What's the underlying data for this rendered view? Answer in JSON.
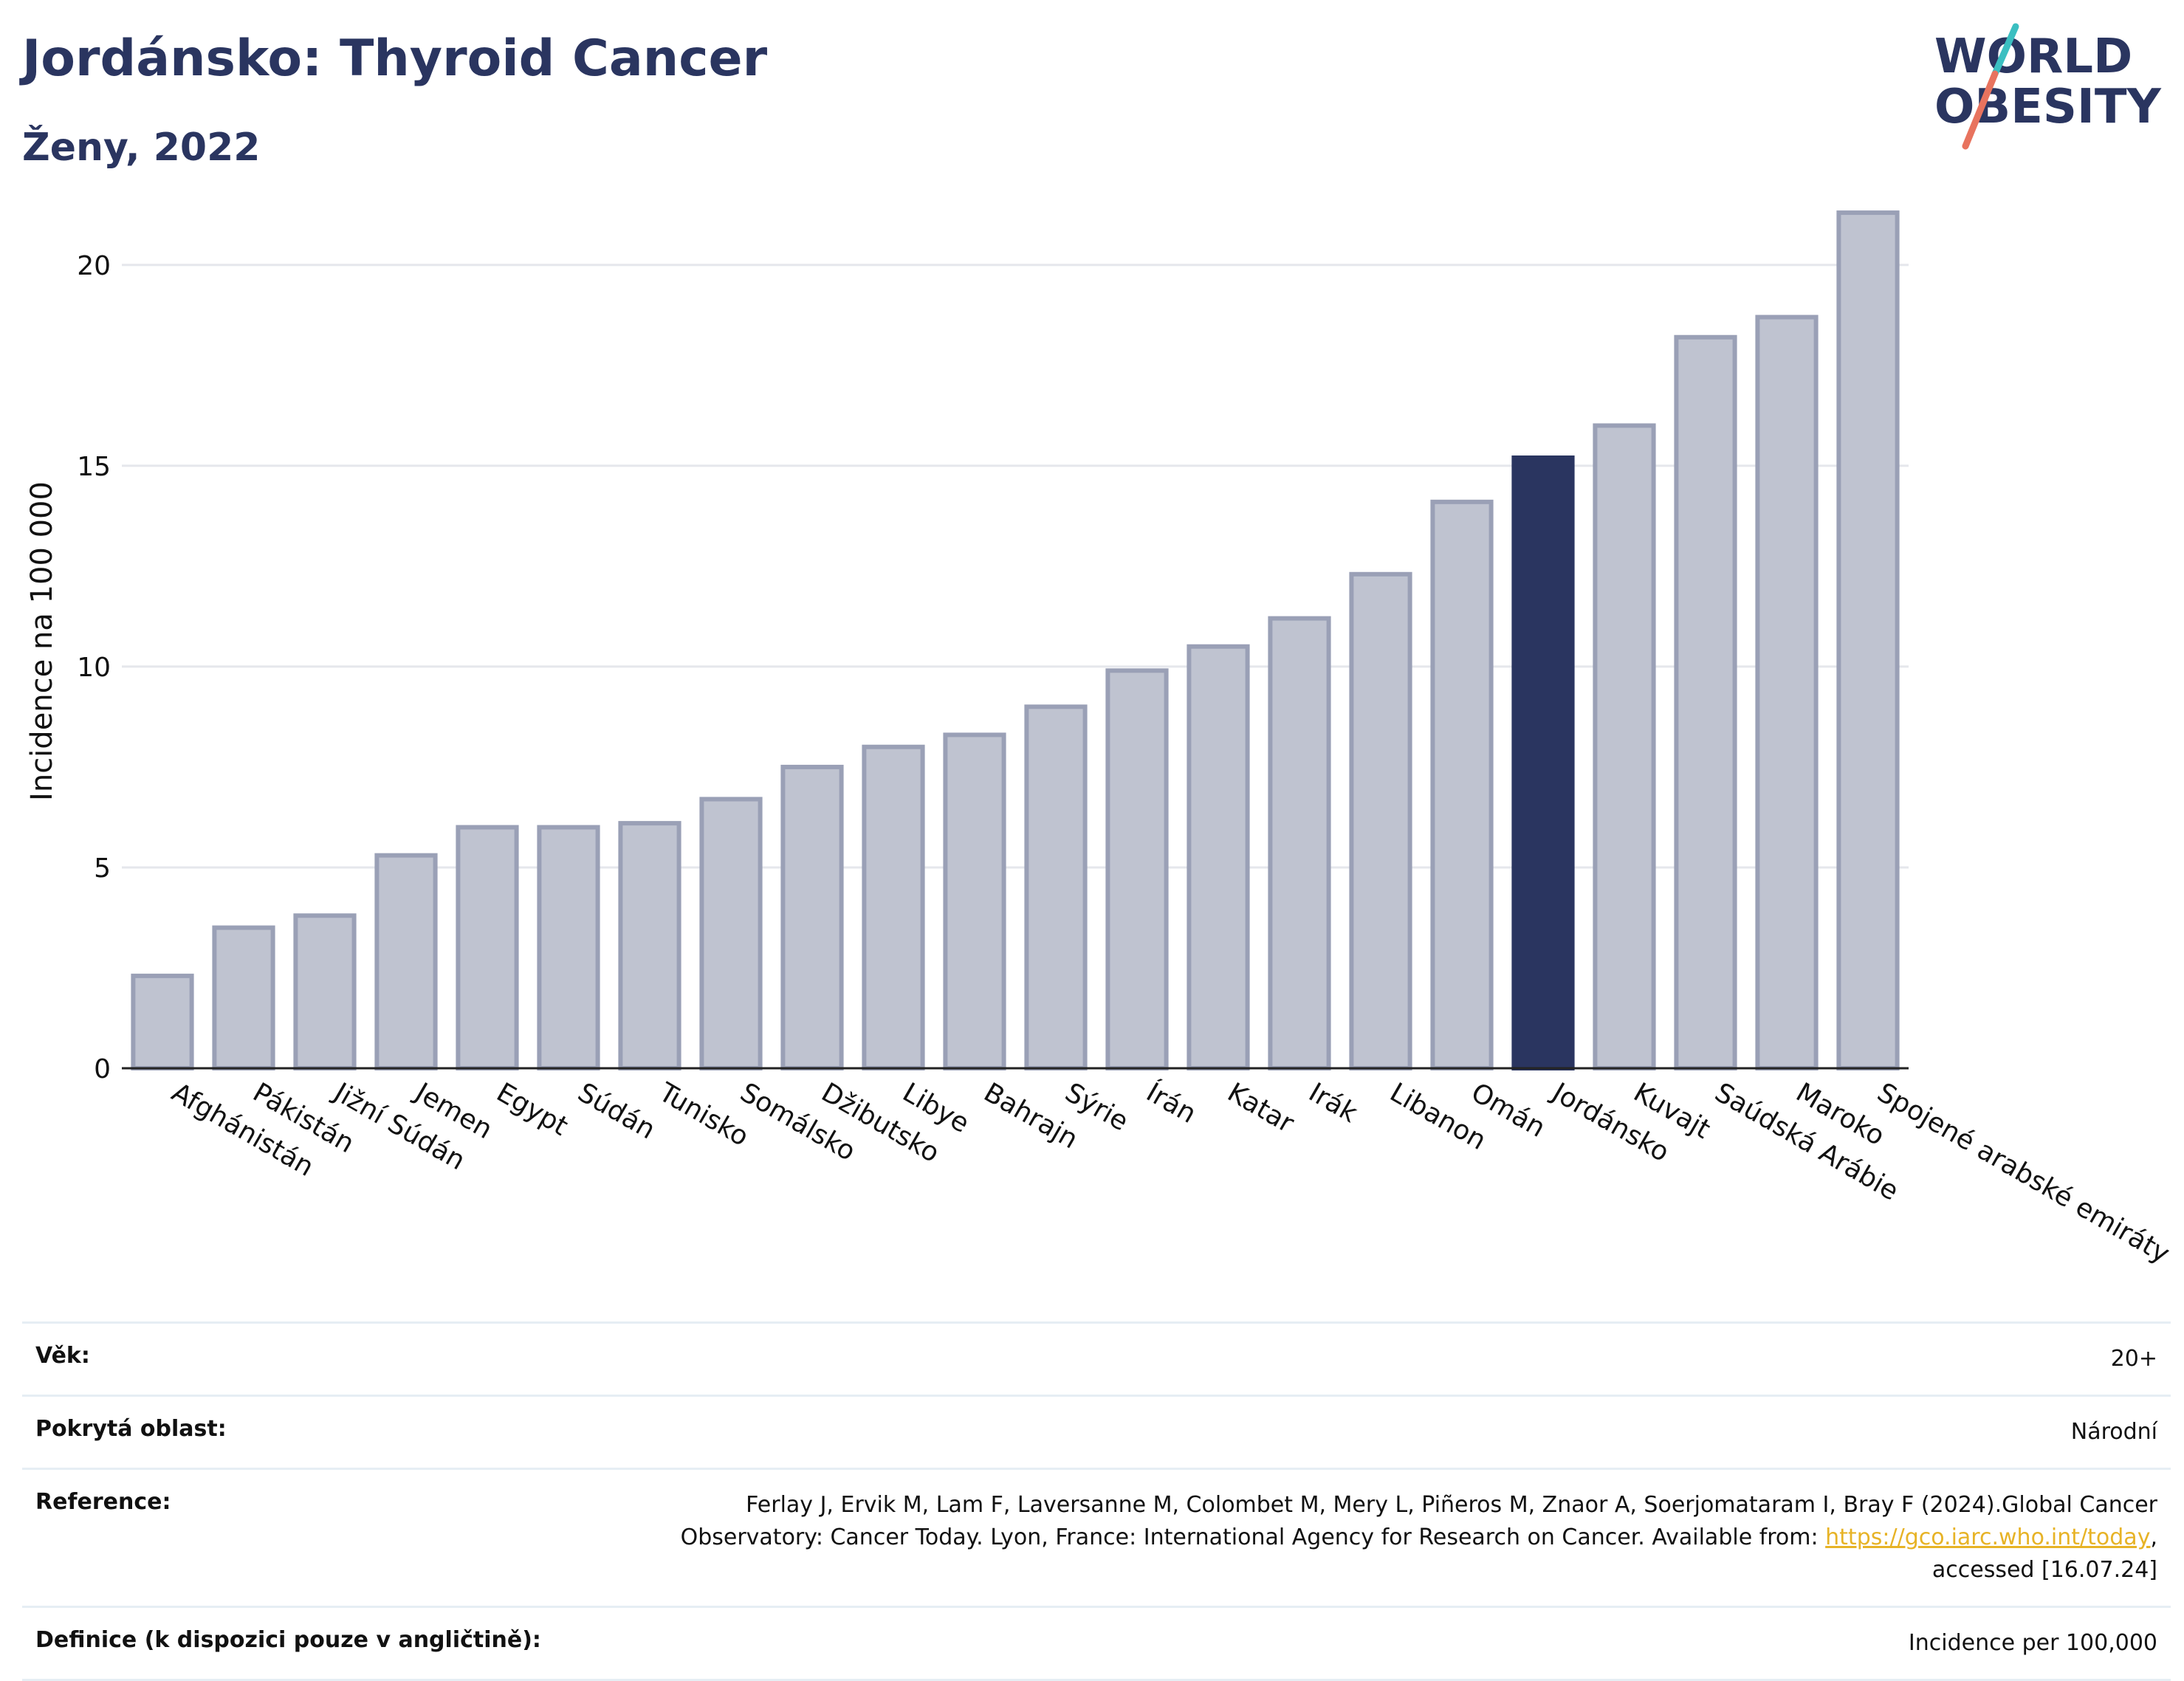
{
  "header": {
    "title": "Jordánsko: Thyroid Cancer",
    "subtitle": "Ženy, 2022"
  },
  "logo": {
    "line1": "WORLD",
    "line2": "OBESITY",
    "accent_teal": "#3bbfc1",
    "accent_coral": "#e8735e"
  },
  "chart_data": {
    "type": "bar",
    "title": "Jordánsko: Thyroid Cancer",
    "subtitle": "Ženy, 2022",
    "ylabel": "Incidence na 100 000",
    "xlabel": "",
    "ylim": [
      0,
      22
    ],
    "yticks": [
      0,
      5,
      10,
      15,
      20
    ],
    "grid": true,
    "highlight": "Jordánsko",
    "colors": {
      "bar": "#bfc3d0",
      "bar_edge": "#9aa0b6",
      "highlight": "#2a3560"
    },
    "categories": [
      "Afghánistán",
      "Pákistán",
      "Jižní Súdán",
      "Jemen",
      "Egypt",
      "Súdán",
      "Tunisko",
      "Somálsko",
      "Džibutsko",
      "Libye",
      "Bahrajn",
      "Sýrie",
      "Írán",
      "Katar",
      "Irák",
      "Libanon",
      "Omán",
      "Jordánsko",
      "Kuvajt",
      "Saúdská Arábie",
      "Maroko",
      "Spojené arabské emiráty"
    ],
    "values": [
      2.3,
      3.5,
      3.8,
      5.3,
      6.0,
      6.0,
      6.1,
      6.7,
      7.5,
      8.0,
      8.3,
      9.0,
      9.9,
      10.5,
      11.2,
      12.3,
      14.1,
      15.2,
      16.0,
      18.2,
      18.7,
      21.3
    ]
  },
  "info": {
    "age_label": "Věk:",
    "age_value": "20+",
    "coverage_label": "Pokrytá oblast:",
    "coverage_value": "Národní",
    "reference_label": "Reference:",
    "reference_line1": "Ferlay J, Ervik M, Lam F, Laversanne M, Colombet M, Mery L, Piñeros M, Znaor A, Soerjomataram I, Bray F (2024).Global Cancer",
    "reference_line2_pre": "Observatory: Cancer Today. Lyon, France: International Agency for Research on Cancer. Available from:",
    "reference_link": "https://gco.iarc.who.int/today",
    "reference_line2_post": ",",
    "reference_line3": "accessed [16.07.24]",
    "definition_label": "Definice (k dispozici pouze v angličtině):",
    "definition_value": "Incidence per 100,000"
  }
}
